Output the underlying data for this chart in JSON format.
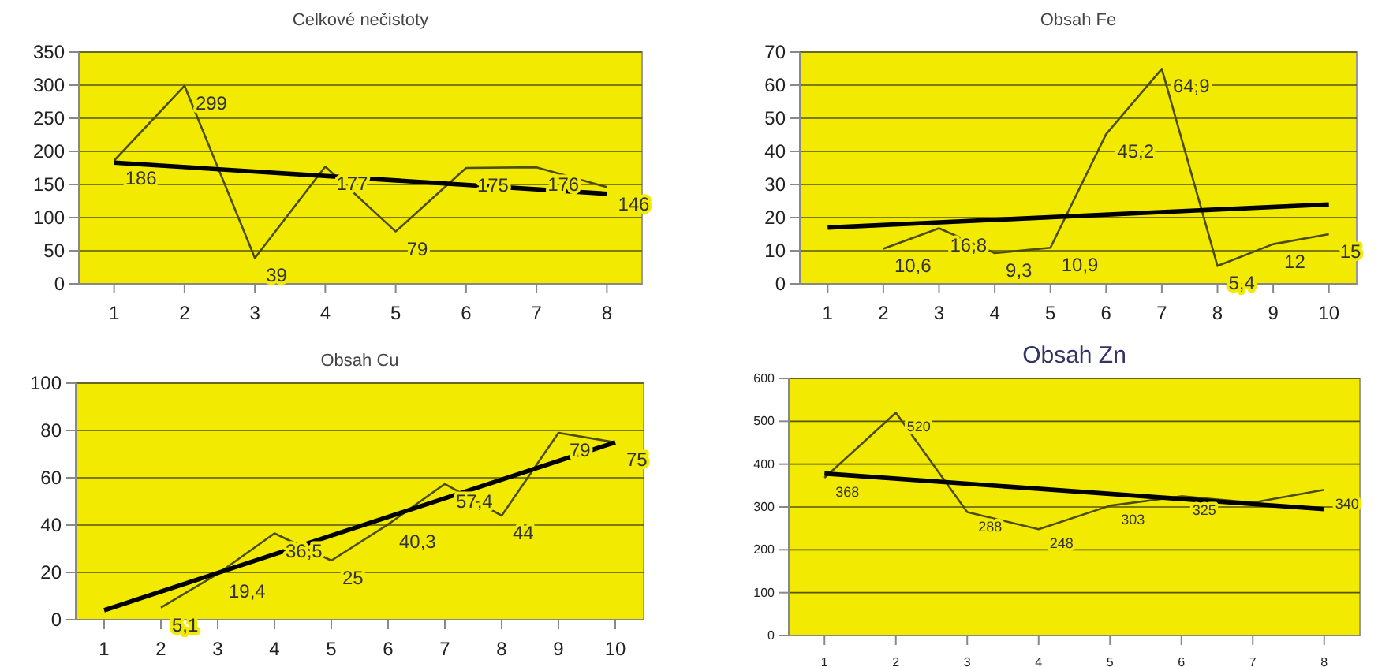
{
  "chart_data": [
    {
      "type": "line",
      "title": "Celkové nečistoty",
      "x": [
        1,
        2,
        3,
        4,
        5,
        6,
        7,
        8
      ],
      "xlim": [
        0.5,
        8.5
      ],
      "xticks": [
        1,
        2,
        3,
        4,
        5,
        6,
        7,
        8
      ],
      "ylim": [
        0,
        350
      ],
      "yticks": [
        0,
        50,
        100,
        150,
        200,
        250,
        300,
        350
      ],
      "grid": "y",
      "series": [
        {
          "color": "#4d4d00",
          "values": [
            186,
            299,
            39,
            177,
            79,
            175,
            176,
            146
          ],
          "value_labels": [
            "186",
            "299",
            "39",
            "177",
            "79",
            "175",
            "176",
            "146"
          ]
        },
        {
          "color": "#000000",
          "x": [
            1,
            8
          ],
          "values": [
            183,
            136
          ]
        }
      ]
    },
    {
      "type": "line",
      "title": "Obsah Fe",
      "x": [
        2,
        3,
        4,
        5,
        6,
        7,
        8,
        9,
        10
      ],
      "xlim": [
        0.5,
        10.5
      ],
      "xticks": [
        1,
        2,
        3,
        4,
        5,
        6,
        7,
        8,
        9,
        10
      ],
      "ylim": [
        0,
        70
      ],
      "yticks": [
        0,
        10,
        20,
        30,
        40,
        50,
        60,
        70
      ],
      "grid": "y",
      "series": [
        {
          "color": "#4d4d00",
          "values": [
            10.6,
            16.8,
            9.3,
            10.9,
            45.2,
            64.9,
            5.4,
            12,
            15
          ],
          "value_labels": [
            "10,6",
            "16,8",
            "9,3",
            "10,9",
            "45,2",
            "64,9",
            "5,4",
            "12",
            "15"
          ]
        },
        {
          "color": "#000000",
          "x": [
            1,
            10
          ],
          "values": [
            17,
            24
          ]
        }
      ]
    },
    {
      "type": "line",
      "title": "Obsah Cu",
      "x": [
        2,
        3,
        4,
        5,
        6,
        7,
        8,
        9,
        10
      ],
      "xlim": [
        0.5,
        10.5
      ],
      "xticks": [
        1,
        2,
        3,
        4,
        5,
        6,
        7,
        8,
        9,
        10
      ],
      "ylim": [
        0,
        100
      ],
      "yticks": [
        0,
        20,
        40,
        60,
        80,
        100
      ],
      "grid": "y",
      "series": [
        {
          "color": "#4d4d00",
          "values": [
            5.1,
            19.4,
            36.5,
            25,
            40.3,
            57.4,
            44,
            79,
            75
          ],
          "value_labels": [
            "5,1",
            "19,4",
            "36,5",
            "25",
            "40,3",
            "57,4",
            "44",
            "79",
            "75"
          ]
        },
        {
          "color": "#000000",
          "x": [
            1,
            10
          ],
          "values": [
            4,
            75
          ]
        }
      ]
    },
    {
      "type": "line",
      "title": "Obsah Zn",
      "x": [
        1,
        2,
        3,
        4,
        5,
        6,
        7,
        8
      ],
      "xlim": [
        0.5,
        8.5
      ],
      "xticks": [
        1,
        2,
        3,
        4,
        5,
        6,
        7,
        8
      ],
      "ylim": [
        0,
        600
      ],
      "yticks": [
        0,
        100,
        200,
        300,
        400,
        500,
        600
      ],
      "grid": "y",
      "series": [
        {
          "color": "#4d4d00",
          "values": [
            368,
            520,
            288,
            248,
            303,
            325,
            310,
            340
          ],
          "value_labels": [
            "368",
            "520",
            "288",
            "248",
            "303",
            "325",
            null,
            "340"
          ]
        },
        {
          "color": "#000000",
          "x": [
            1,
            8
          ],
          "values": [
            378,
            295
          ]
        }
      ]
    }
  ]
}
